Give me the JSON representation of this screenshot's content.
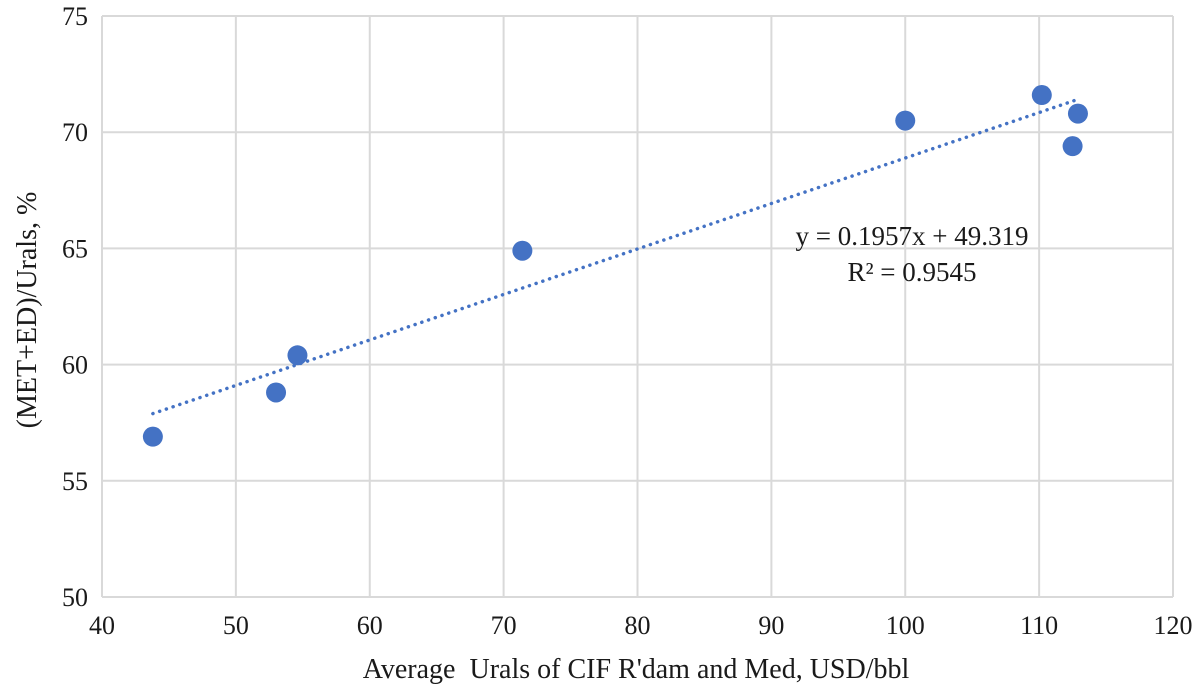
{
  "colors": {
    "marker": "#4472C4",
    "trendline": "#4472C4",
    "grid": "#d9d9d9",
    "text": "#1a1a1a"
  },
  "chart_data": {
    "type": "scatter",
    "title": "",
    "xlabel": "Average  Urals of CIF R'dam and Med, USD/bbl",
    "ylabel": "(MET+ED)/Urals, %",
    "xlim": [
      40,
      120
    ],
    "ylim": [
      50,
      75
    ],
    "xticks": [
      40,
      50,
      60,
      70,
      80,
      90,
      100,
      110,
      120
    ],
    "yticks": [
      50,
      55,
      60,
      65,
      70,
      75
    ],
    "grid": true,
    "series": [
      {
        "points": [
          {
            "x": 43.8,
            "y": 56.9
          },
          {
            "x": 53.0,
            "y": 58.8
          },
          {
            "x": 54.6,
            "y": 60.4
          },
          {
            "x": 71.4,
            "y": 64.9
          },
          {
            "x": 100.0,
            "y": 70.5
          },
          {
            "x": 110.2,
            "y": 71.6
          },
          {
            "x": 112.5,
            "y": 69.4
          },
          {
            "x": 112.9,
            "y": 70.8
          }
        ]
      }
    ],
    "trendline": {
      "type": "linear",
      "style": "dotted",
      "slope": 0.1957,
      "intercept": 49.319,
      "x_range": [
        43.8,
        112.9
      ],
      "equation_label": "y = 0.1957x  + 49.319",
      "r2_label": "R² = 0.9545"
    }
  }
}
